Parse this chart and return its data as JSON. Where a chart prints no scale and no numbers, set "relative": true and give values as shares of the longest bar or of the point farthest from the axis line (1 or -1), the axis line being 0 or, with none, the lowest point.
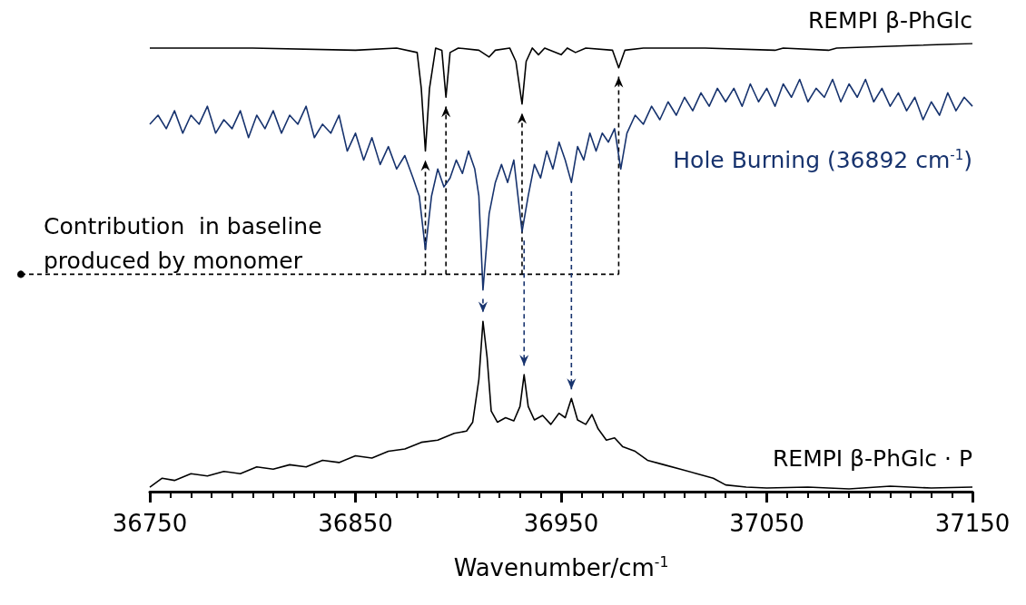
{
  "chart_data": {
    "type": "line",
    "relative": true,
    "xlabel": "Wavenumber/cm$^{-1}$",
    "xlim": [
      36750,
      37150
    ],
    "xticks": [
      36750,
      36850,
      36950,
      37050,
      37150
    ],
    "grid": false,
    "legend": false,
    "marker": "none",
    "line_style": "solid",
    "annotations": [
      "Contribution  in baseline produced by monomer"
    ],
    "series": [
      {
        "name": "REMPI β-PhGlc",
        "color": "#000000",
        "x": [
          36750,
          36800,
          36850,
          36870,
          36880,
          36882,
          36884,
          36886,
          36889,
          36892,
          36894,
          36896,
          36900,
          36910,
          36915,
          36918,
          36925,
          36928,
          36931,
          36933,
          36936,
          36939,
          36942,
          36950,
          36953,
          36957,
          36962,
          36975,
          36978,
          36981,
          36990,
          37020,
          37054,
          37058,
          37080,
          37084,
          37150
        ],
        "values": [
          0.99,
          0.99,
          0.985,
          0.99,
          0.98,
          0.9,
          0.76,
          0.9,
          0.99,
          0.985,
          0.88,
          0.98,
          0.99,
          0.985,
          0.97,
          0.985,
          0.99,
          0.96,
          0.865,
          0.96,
          0.99,
          0.975,
          0.99,
          0.975,
          0.99,
          0.98,
          0.99,
          0.985,
          0.946,
          0.985,
          0.99,
          0.99,
          0.985,
          0.99,
          0.985,
          0.99,
          1
        ]
      },
      {
        "name": "Hole Burning (36892 cm$^{-1}$)",
        "color": "#17336e",
        "x": [
          36750,
          36754,
          36758,
          36762,
          36766,
          36770,
          36774,
          36778,
          36782,
          36786,
          36790,
          36794,
          36798,
          36802,
          36806,
          36810,
          36814,
          36818,
          36822,
          36826,
          36830,
          36834,
          36838,
          36842,
          36846,
          36850,
          36854,
          36858,
          36862,
          36866,
          36870,
          36874,
          36878,
          36881,
          36884,
          36887,
          36890,
          36893,
          36896,
          36899,
          36902,
          36905,
          36908,
          36910,
          36912,
          36915,
          36918,
          36921,
          36924,
          36927,
          36929,
          36931,
          36934,
          36937,
          36940,
          36943,
          36946,
          36949,
          36952,
          36955,
          36958,
          36961,
          36964,
          36967,
          36970,
          36973,
          36976,
          36979,
          36982,
          36986,
          36990,
          36994,
          36998,
          37002,
          37006,
          37010,
          37014,
          37018,
          37022,
          37026,
          37030,
          37034,
          37038,
          37042,
          37046,
          37050,
          37054,
          37058,
          37062,
          37066,
          37070,
          37074,
          37078,
          37082,
          37086,
          37090,
          37094,
          37098,
          37102,
          37106,
          37110,
          37114,
          37118,
          37122,
          37126,
          37130,
          37134,
          37138,
          37142,
          37146,
          37150
        ],
        "values": [
          0.82,
          0.84,
          0.81,
          0.85,
          0.8,
          0.84,
          0.82,
          0.86,
          0.8,
          0.83,
          0.81,
          0.85,
          0.79,
          0.84,
          0.81,
          0.85,
          0.8,
          0.84,
          0.82,
          0.86,
          0.79,
          0.82,
          0.8,
          0.84,
          0.76,
          0.8,
          0.74,
          0.79,
          0.73,
          0.77,
          0.72,
          0.75,
          0.7,
          0.66,
          0.54,
          0.66,
          0.72,
          0.68,
          0.7,
          0.74,
          0.71,
          0.76,
          0.72,
          0.66,
          0.45,
          0.62,
          0.69,
          0.73,
          0.69,
          0.74,
          0.66,
          0.58,
          0.66,
          0.73,
          0.7,
          0.76,
          0.72,
          0.78,
          0.74,
          0.69,
          0.77,
          0.74,
          0.8,
          0.76,
          0.8,
          0.78,
          0.81,
          0.72,
          0.8,
          0.84,
          0.82,
          0.86,
          0.83,
          0.87,
          0.84,
          0.88,
          0.85,
          0.89,
          0.86,
          0.9,
          0.87,
          0.9,
          0.86,
          0.91,
          0.87,
          0.9,
          0.86,
          0.91,
          0.88,
          0.92,
          0.87,
          0.9,
          0.88,
          0.92,
          0.87,
          0.91,
          0.88,
          0.92,
          0.87,
          0.9,
          0.86,
          0.89,
          0.85,
          0.88,
          0.83,
          0.87,
          0.84,
          0.89,
          0.85,
          0.88,
          0.86
        ]
      },
      {
        "name": "REMPI β-PhGlc · P",
        "color": "#000000",
        "x": [
          36750,
          36756,
          36762,
          36770,
          36778,
          36786,
          36794,
          36802,
          36810,
          36818,
          36826,
          36834,
          36842,
          36850,
          36858,
          36866,
          36874,
          36882,
          36890,
          36898,
          36904,
          36907,
          36910,
          36912,
          36914,
          36916,
          36919,
          36923,
          36927,
          36930,
          36932,
          36934,
          36937,
          36941,
          36945,
          36949,
          36952,
          36955,
          36958,
          36962,
          36965,
          36968,
          36972,
          36976,
          36980,
          36986,
          36992,
          37000,
          37008,
          37016,
          37024,
          37030,
          37040,
          37050,
          37070,
          37090,
          37110,
          37130,
          37150
        ],
        "values": [
          0.01,
          0.03,
          0.025,
          0.04,
          0.035,
          0.045,
          0.04,
          0.055,
          0.05,
          0.06,
          0.055,
          0.07,
          0.065,
          0.08,
          0.075,
          0.09,
          0.095,
          0.11,
          0.115,
          0.13,
          0.135,
          0.155,
          0.25,
          0.38,
          0.3,
          0.18,
          0.155,
          0.165,
          0.158,
          0.19,
          0.261,
          0.19,
          0.16,
          0.17,
          0.15,
          0.175,
          0.165,
          0.208,
          0.16,
          0.15,
          0.172,
          0.14,
          0.115,
          0.12,
          0.1,
          0.09,
          0.07,
          0.06,
          0.05,
          0.04,
          0.03,
          0.015,
          0.01,
          0.008,
          0.01,
          0.006,
          0.012,
          0.008,
          0.01
        ]
      }
    ]
  }
}
